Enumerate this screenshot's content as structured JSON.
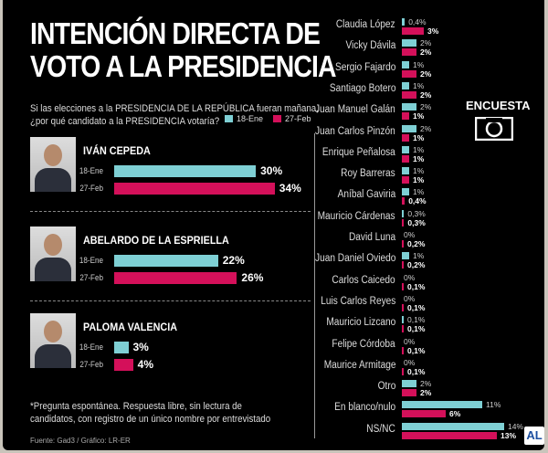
{
  "header": {
    "title_line1": "INTENCIÓN DIRECTA DE",
    "title_line2": "VOTO A LA PRESIDENCIA",
    "question_line1": "Si las elecciones a la PRESIDENCIA DE LA REPÚBLICA fueran mañana,",
    "question_line2": "¿por qué candidato a la PRESIDENCIA votaría?"
  },
  "colors": {
    "ene": "#7ecfd4",
    "feb": "#d4105a"
  },
  "chart_data": {
    "type": "bar",
    "title": "INTENCIÓN DIRECTA DE VOTO A LA PRESIDENCIA",
    "legend": [
      "18-Ene",
      "27-Feb"
    ],
    "legend_placement": "top-right",
    "main_candidates": [
      {
        "name": "IVÁN CEPEDA",
        "ene": 30,
        "feb": 34,
        "ene_label": "30%",
        "feb_label": "34%"
      },
      {
        "name": "ABELARDO DE LA ESPRIELLA",
        "ene": 22,
        "feb": 26,
        "ene_label": "22%",
        "feb_label": "26%"
      },
      {
        "name": "PALOMA VALENCIA",
        "ene": 3,
        "feb": 4,
        "ene_label": "3%",
        "feb_label": "4%"
      }
    ],
    "others": [
      {
        "name": "Claudia López",
        "ene": 0.4,
        "feb": 3,
        "ene_label": "0,4%",
        "feb_label": "3%"
      },
      {
        "name": "Vicky Dávila",
        "ene": 2,
        "feb": 2,
        "ene_label": "2%",
        "feb_label": "2%"
      },
      {
        "name": "Sergio Fajardo",
        "ene": 1,
        "feb": 2,
        "ene_label": "1%",
        "feb_label": "2%"
      },
      {
        "name": "Santiago Botero",
        "ene": 1,
        "feb": 2,
        "ene_label": "1%",
        "feb_label": "2%"
      },
      {
        "name": "Juan Manuel Galán",
        "ene": 2,
        "feb": 1,
        "ene_label": "2%",
        "feb_label": "1%"
      },
      {
        "name": "Juan Carlos Pinzón",
        "ene": 2,
        "feb": 1,
        "ene_label": "2%",
        "feb_label": "1%"
      },
      {
        "name": "Enrique Peñalosa",
        "ene": 1,
        "feb": 1,
        "ene_label": "1%",
        "feb_label": "1%"
      },
      {
        "name": "Roy Barreras",
        "ene": 1,
        "feb": 1,
        "ene_label": "1%",
        "feb_label": "1%"
      },
      {
        "name": "Aníbal Gaviria",
        "ene": 1,
        "feb": 0.4,
        "ene_label": "1%",
        "feb_label": "0,4%"
      },
      {
        "name": "Mauricio Cárdenas",
        "ene": 0.3,
        "feb": 0.3,
        "ene_label": "0,3%",
        "feb_label": "0,3%"
      },
      {
        "name": "David Luna",
        "ene": 0,
        "feb": 0.2,
        "ene_label": "0%",
        "feb_label": "0,2%"
      },
      {
        "name": "Juan Daniel Oviedo",
        "ene": 1,
        "feb": 0.2,
        "ene_label": "1%",
        "feb_label": "0,2%"
      },
      {
        "name": "Carlos Caicedo",
        "ene": 0,
        "feb": 0.1,
        "ene_label": "0%",
        "feb_label": "0,1%"
      },
      {
        "name": "Luis Carlos Reyes",
        "ene": 0,
        "feb": 0.1,
        "ene_label": "0%",
        "feb_label": "0,1%"
      },
      {
        "name": "Mauricio Lizcano",
        "ene": 0.1,
        "feb": 0.1,
        "ene_label": "0,1%",
        "feb_label": "0,1%"
      },
      {
        "name": "Felipe Córdoba",
        "ene": 0,
        "feb": 0.1,
        "ene_label": "0%",
        "feb_label": "0,1%"
      },
      {
        "name": "Maurice Armitage",
        "ene": 0,
        "feb": 0.1,
        "ene_label": "0%",
        "feb_label": "0,1%"
      },
      {
        "name": "Otro",
        "ene": 2,
        "feb": 2,
        "ene_label": "2%",
        "feb_label": "2%"
      },
      {
        "name": "En blanco/nulo",
        "ene": 11,
        "feb": 6,
        "ene_label": "11%",
        "feb_label": "6%"
      },
      {
        "name": "NS/NC",
        "ene": 14,
        "feb": 13,
        "ene_label": "14%",
        "feb_label": "13%"
      }
    ],
    "ylim": [
      0,
      35
    ]
  },
  "footer": {
    "note_line1": "*Pregunta espontánea. Respuesta libre, sin lectura de",
    "note_line2": "candidatos, con registro de un único nombre por entrevistado",
    "source": "Fuente: Gad3 / Gráfico: LR-ER"
  },
  "branding": {
    "encuesta": "ENCUESTA",
    "rcn_logo": "RCN",
    "al_logo": "AL"
  }
}
